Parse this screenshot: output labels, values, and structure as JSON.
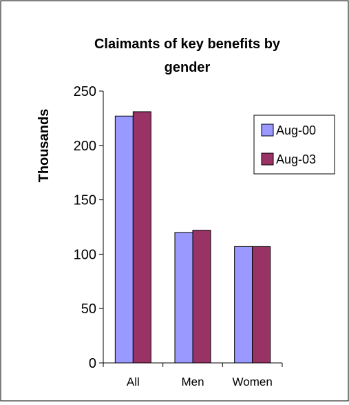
{
  "chart_data": {
    "type": "bar",
    "title": "Claimants of key benefits by gender",
    "title_lines": [
      "Claimants of key benefits by",
      "gender"
    ],
    "ylabel": "Thousands",
    "xlabel": "",
    "categories": [
      "All",
      "Men",
      "Women"
    ],
    "ylim": [
      0,
      250
    ],
    "yticks": [
      0,
      50,
      100,
      150,
      200,
      250
    ],
    "grid": false,
    "legend_position": "top-right",
    "series": [
      {
        "name": "Aug-00",
        "color": "#9999ff",
        "values": [
          227,
          120,
          107
        ]
      },
      {
        "name": "Aug-03",
        "color": "#993366",
        "values": [
          231,
          122,
          107
        ]
      }
    ]
  }
}
